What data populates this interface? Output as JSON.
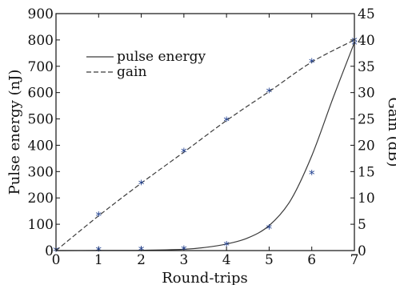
{
  "chart_data": {
    "type": "line",
    "title": "",
    "xlabel": "Round-trips",
    "ylabel_left": "Pulse energy (nJ)",
    "ylabel_right": "Gain (dB)",
    "xlim": [
      0,
      7
    ],
    "ylim_left": [
      0,
      900
    ],
    "ylim_right": [
      0,
      45
    ],
    "xticks": [
      "0",
      "1",
      "2",
      "3",
      "4",
      "5",
      "6",
      "7"
    ],
    "yticks_left": [
      "0",
      "100",
      "200",
      "300",
      "400",
      "500",
      "600",
      "700",
      "800",
      "900"
    ],
    "yticks_right": [
      "0",
      "5",
      "10",
      "15",
      "20",
      "25",
      "30",
      "35",
      "40",
      "45"
    ],
    "grid": false,
    "legend_position": "upper-left",
    "series": [
      {
        "name": "pulse energy",
        "axis": "left",
        "style": "solid",
        "color": "#3a3a3a",
        "x": [
          0,
          1,
          2,
          3,
          3.5,
          4,
          4.5,
          5,
          5.5,
          6,
          6.5,
          7
        ],
        "y": [
          0,
          0.3,
          1,
          5,
          12,
          25,
          48,
          95,
          190,
          360,
          580,
          790
        ]
      },
      {
        "name": "gain",
        "axis": "right",
        "style": "dashed",
        "color": "#3a3a3a",
        "x": [
          0,
          1,
          2,
          3,
          4,
          5,
          6,
          7
        ],
        "y": [
          0,
          6.6,
          12.8,
          18.7,
          24.7,
          30.2,
          35.8,
          40
        ]
      }
    ],
    "markers": [
      {
        "axis": "left",
        "symbol": "*",
        "color": "#1f3f8f",
        "x": [
          0,
          1,
          2,
          3,
          4,
          5,
          6,
          7
        ],
        "y": [
          0,
          2,
          3,
          5,
          22,
          85,
          292,
          785
        ]
      },
      {
        "axis": "right",
        "symbol": "*",
        "color": "#1f3f8f",
        "x": [
          1,
          2,
          3,
          4,
          5,
          6,
          7
        ],
        "y": [
          6.7,
          12.7,
          18.8,
          24.7,
          30.2,
          35.8,
          39.8
        ]
      }
    ]
  }
}
